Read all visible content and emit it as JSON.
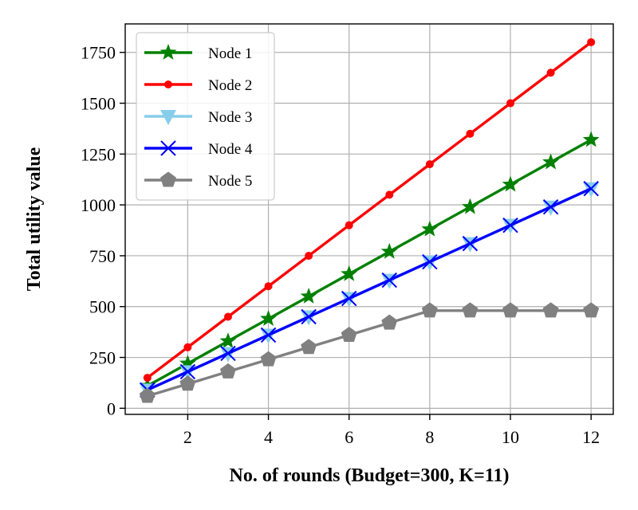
{
  "chart_data": {
    "type": "line",
    "xlabel": "No. of rounds (Budget=300, K=11)",
    "ylabel": "Total utility value",
    "xlim": [
      0.45,
      12.55
    ],
    "ylim": [
      -30,
      1890
    ],
    "xticks": [
      2,
      4,
      6,
      8,
      10,
      12
    ],
    "yticks": [
      0,
      250,
      500,
      750,
      1000,
      1250,
      1500,
      1750
    ],
    "grid": true,
    "legend_position": "upper-left",
    "x": [
      1,
      2,
      3,
      4,
      5,
      6,
      7,
      8,
      9,
      10,
      11,
      12
    ],
    "series": [
      {
        "name": "Node 1",
        "color": "#008000",
        "marker": "star",
        "values": [
          110,
          220,
          330,
          440,
          550,
          660,
          770,
          880,
          990,
          1100,
          1210,
          1320
        ]
      },
      {
        "name": "Node 2",
        "color": "#ff0000",
        "marker": "circle",
        "values": [
          150,
          300,
          450,
          600,
          750,
          900,
          1050,
          1200,
          1350,
          1500,
          1650,
          1800
        ]
      },
      {
        "name": "Node 3",
        "color": "#87ceeb",
        "marker": "triangle-down",
        "values": [
          90,
          180,
          270,
          360,
          450,
          540,
          630,
          720,
          810,
          900,
          990,
          1080
        ]
      },
      {
        "name": "Node 4",
        "color": "#0000ff",
        "marker": "x",
        "values": [
          90,
          180,
          270,
          360,
          450,
          540,
          630,
          720,
          810,
          900,
          990,
          1080
        ]
      },
      {
        "name": "Node 5",
        "color": "#808080",
        "marker": "pentagon",
        "values": [
          60,
          120,
          180,
          240,
          300,
          360,
          420,
          480,
          480,
          480,
          480,
          480
        ]
      }
    ]
  }
}
